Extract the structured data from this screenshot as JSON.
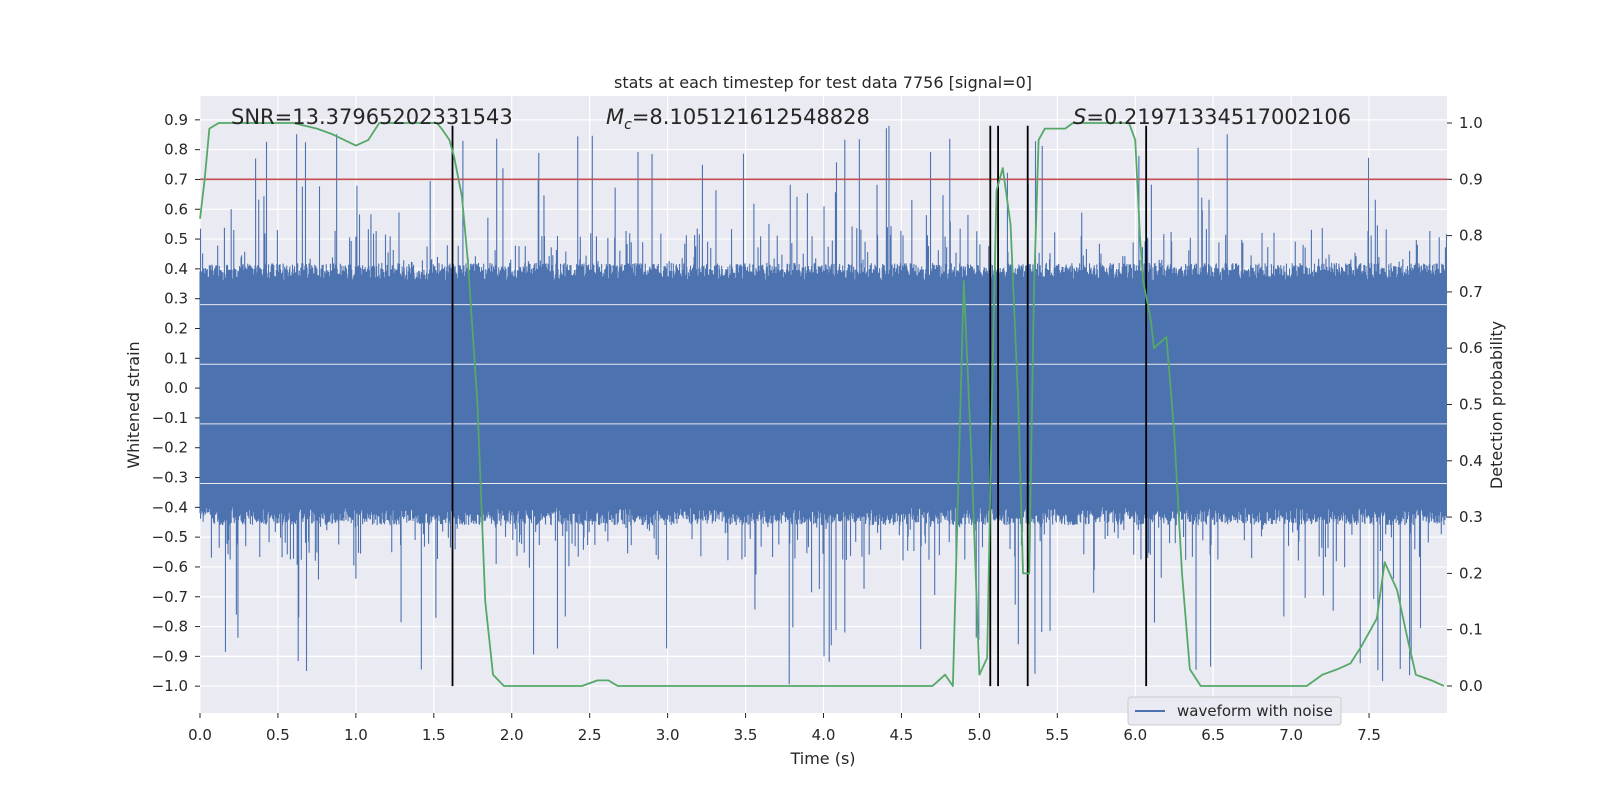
{
  "chart_data": {
    "type": "line",
    "title": "stats at each timestep for test data 7756 [signal=0]",
    "xlabel": "Time (s)",
    "ylabel_left": "Whitened strain",
    "ylabel_right": "Detection probability",
    "xlim": [
      0.0,
      8.0
    ],
    "ylim_left": [
      -1.09,
      0.98
    ],
    "ylim_right": [
      -0.048,
      1.048
    ],
    "x_ticks": [
      "0.0",
      "0.5",
      "1.0",
      "1.5",
      "2.0",
      "2.5",
      "3.0",
      "3.5",
      "4.0",
      "4.5",
      "5.0",
      "5.5",
      "6.0",
      "6.5",
      "7.0",
      "7.5"
    ],
    "y_left_ticks": [
      "0.9",
      "0.8",
      "0.7",
      "0.6",
      "0.5",
      "0.4",
      "0.3",
      "0.2",
      "0.1",
      "0.0",
      "−0.1",
      "−0.2",
      "−0.3",
      "−0.4",
      "−0.5",
      "−0.6",
      "−0.7",
      "−0.8",
      "−0.9",
      "−1.0"
    ],
    "y_right_ticks": [
      "1.0",
      "0.9",
      "0.8",
      "0.7",
      "0.6",
      "0.5",
      "0.4",
      "0.3",
      "0.2",
      "0.1",
      "0.0"
    ],
    "grid": true,
    "annotations": {
      "snr": "SNR=13.37965202331543",
      "mc_symbol": "M",
      "mc_sub": "c",
      "mc_value": "=8.105121612548828",
      "s_symbol": "S",
      "s_value": "=0.21971334517002106"
    },
    "threshold": {
      "value": 0.9,
      "axis": "right",
      "color": "#c44e52"
    },
    "vertical_markers": [
      1.62,
      5.07,
      5.12,
      5.31,
      6.07
    ],
    "marker_ylim_left": [
      -1.0,
      0.88
    ],
    "series": [
      {
        "name": "waveform with noise",
        "axis": "left",
        "color": "#4c72b0",
        "envelope": {
          "upper": 0.38,
          "lower": -0.42,
          "spike_max": 0.88,
          "spike_min": -1.0
        }
      },
      {
        "name": "detection probability",
        "axis": "right",
        "color": "#55a868",
        "x": [
          0.0,
          0.03,
          0.06,
          0.12,
          0.2,
          0.4,
          0.6,
          0.75,
          0.85,
          1.0,
          1.08,
          1.15,
          1.3,
          1.45,
          1.52,
          1.55,
          1.6,
          1.63,
          1.68,
          1.72,
          1.78,
          1.83,
          1.88,
          1.95,
          2.1,
          2.3,
          2.45,
          2.55,
          2.62,
          2.68,
          2.75,
          2.85,
          2.95,
          3.1,
          3.3,
          3.5,
          3.7,
          3.8,
          3.9,
          4.1,
          4.3,
          4.45,
          4.55,
          4.6,
          4.7,
          4.78,
          4.83,
          4.9,
          4.95,
          5.0,
          5.05,
          5.08,
          5.11,
          5.15,
          5.2,
          5.25,
          5.28,
          5.32,
          5.35,
          5.38,
          5.42,
          5.47,
          5.55,
          5.6,
          5.7,
          5.8,
          5.9,
          5.96,
          6.0,
          6.03,
          6.05,
          6.1,
          6.12,
          6.2,
          6.25,
          6.3,
          6.35,
          6.42,
          6.48,
          6.55,
          6.7,
          6.9,
          7.0,
          7.05,
          7.1,
          7.15,
          7.2,
          7.3,
          7.38,
          7.45,
          7.55,
          7.6,
          7.68,
          7.75,
          7.8,
          7.9,
          7.98
        ],
        "y": [
          0.83,
          0.9,
          0.99,
          1.0,
          1.0,
          1.0,
          1.0,
          0.99,
          0.98,
          0.96,
          0.97,
          1.0,
          1.0,
          1.0,
          1.0,
          0.99,
          0.97,
          0.94,
          0.87,
          0.75,
          0.5,
          0.15,
          0.02,
          0.0,
          0.0,
          0.0,
          0.0,
          0.01,
          0.01,
          0.0,
          0.0,
          0.0,
          0.0,
          0.0,
          0.0,
          0.0,
          0.0,
          0.0,
          0.0,
          0.0,
          0.0,
          0.0,
          0.0,
          0.0,
          0.0,
          0.02,
          0.0,
          0.72,
          0.4,
          0.02,
          0.05,
          0.5,
          0.88,
          0.92,
          0.82,
          0.5,
          0.2,
          0.2,
          0.7,
          0.97,
          0.99,
          0.99,
          0.99,
          1.0,
          1.0,
          1.0,
          1.0,
          1.0,
          0.97,
          0.8,
          0.72,
          0.65,
          0.6,
          0.62,
          0.45,
          0.2,
          0.03,
          0.0,
          0.0,
          0.0,
          0.0,
          0.0,
          0.0,
          0.0,
          0.0,
          0.01,
          0.02,
          0.03,
          0.04,
          0.07,
          0.12,
          0.22,
          0.17,
          0.08,
          0.02,
          0.01,
          0.0
        ]
      }
    ],
    "legend": {
      "label": "waveform with noise",
      "position": "lower-right"
    }
  }
}
